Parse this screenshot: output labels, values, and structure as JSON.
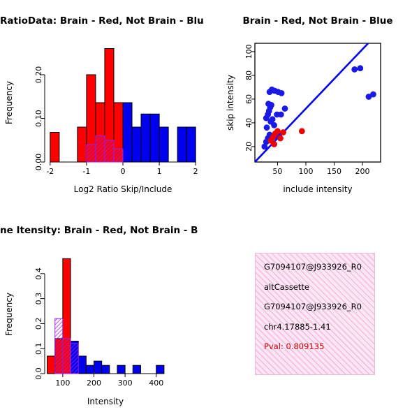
{
  "window": {
    "background": "#ffffff"
  },
  "colors": {
    "hist_red": "#FF0000",
    "hist_blue": "#0000EE",
    "overlap_purple": "#A020F0",
    "scatter_blue": "#1A1AE6",
    "scatter_red": "#EE0000",
    "fit_line_blue": "#0000FF",
    "info_box_pink": "#F5C6E4",
    "pval_red": "#CC0000"
  },
  "chart_data": [
    {
      "type": "bar",
      "title": "RatioData: Brain - Red, Not Brain - Blu",
      "xlabel": "Log2 Ratio Skip/Include",
      "ylabel": "Frequency",
      "frame": false,
      "grid": false,
      "bin_width": 0.25,
      "xlim": [
        -2.15,
        2.15
      ],
      "ylim": [
        0,
        0.272
      ],
      "xticks": [
        -2,
        -1,
        0,
        1,
        2
      ],
      "xtick_labels": [
        "-2",
        "-1",
        "0",
        "1",
        "2"
      ],
      "yticks": [
        0,
        0.1,
        0.2
      ],
      "ytick_labels": [
        "0.00",
        "0.10",
        "0.20"
      ],
      "series": [
        {
          "name": "brain-red",
          "color": "#FF0000",
          "hatch": false,
          "bins": [
            {
              "x": -2.0,
              "h": 0.068
            },
            {
              "x": -1.25,
              "h": 0.08
            },
            {
              "x": -1.0,
              "h": 0.2
            },
            {
              "x": -0.75,
              "h": 0.136
            },
            {
              "x": -0.5,
              "h": 0.26
            },
            {
              "x": -0.25,
              "h": 0.136
            }
          ]
        },
        {
          "name": "not-brain-blue",
          "color": "#0000EE",
          "hatch": false,
          "bins": [
            {
              "x": 0.0,
              "h": 0.136
            },
            {
              "x": 0.25,
              "h": 0.08
            },
            {
              "x": 0.5,
              "h": 0.11
            },
            {
              "x": 0.75,
              "h": 0.11
            },
            {
              "x": 1.0,
              "h": 0.08
            },
            {
              "x": 1.5,
              "h": 0.08
            },
            {
              "x": 1.75,
              "h": 0.08
            }
          ]
        },
        {
          "name": "overlap-purple-hatched",
          "color": "#A020F0",
          "hatch": true,
          "bins": [
            {
              "x": -1.0,
              "h": 0.04
            },
            {
              "x": -0.75,
              "h": 0.06
            },
            {
              "x": -0.5,
              "h": 0.05
            },
            {
              "x": -0.25,
              "h": 0.03
            }
          ]
        }
      ]
    },
    {
      "type": "scatter",
      "title": "Brain - Red, Not Brain - Blue",
      "xlabel": "include intensity",
      "ylabel": "skip intensity",
      "frame": true,
      "grid": false,
      "xlim": [
        10,
        232
      ],
      "ylim": [
        7,
        107
      ],
      "xticks": [
        50,
        100,
        150,
        200
      ],
      "xtick_labels": [
        "50",
        "100",
        "150",
        "200"
      ],
      "yticks": [
        20,
        40,
        60,
        80,
        100
      ],
      "ytick_labels": [
        "20",
        "40",
        "60",
        "80",
        "100"
      ],
      "line": {
        "x1": 10,
        "y1": 7,
        "x2": 210,
        "y2": 107,
        "color": "#0000FF"
      },
      "series": [
        {
          "name": "not-brain-blue",
          "color": "#1A1AE6",
          "points": [
            [
              27,
              20
            ],
            [
              30,
              24
            ],
            [
              33,
              27
            ],
            [
              36,
              30
            ],
            [
              31,
              36
            ],
            [
              30,
              44
            ],
            [
              33,
              47
            ],
            [
              35,
              50
            ],
            [
              37,
              53
            ],
            [
              34,
              56
            ],
            [
              39,
              55
            ],
            [
              38,
              41
            ],
            [
              41,
              43
            ],
            [
              44,
              38
            ],
            [
              49,
              47
            ],
            [
              56,
              47
            ],
            [
              63,
              52
            ],
            [
              36,
              66
            ],
            [
              40,
              68
            ],
            [
              45,
              67
            ],
            [
              51,
              66
            ],
            [
              57,
              65
            ],
            [
              46,
              28
            ],
            [
              53,
              30
            ],
            [
              186,
              85
            ],
            [
              196,
              86
            ],
            [
              211,
              62
            ],
            [
              219,
              64
            ]
          ]
        },
        {
          "name": "brain-red",
          "color": "#EE0000",
          "points": [
            [
              38,
              25
            ],
            [
              42,
              28
            ],
            [
              46,
              31
            ],
            [
              50,
              33
            ],
            [
              55,
              27
            ],
            [
              60,
              32
            ],
            [
              44,
              22
            ],
            [
              93,
              33
            ]
          ]
        }
      ]
    },
    {
      "type": "bar",
      "title": "ne Itensity: Brain - Red, Not Brain - B",
      "xlabel": "Intensity",
      "ylabel": "Frequency",
      "frame": false,
      "grid": false,
      "bin_width": 25,
      "xlim": [
        42,
        432
      ],
      "ylim": [
        0,
        0.475
      ],
      "xticks": [
        100,
        200,
        300,
        400
      ],
      "xtick_labels": [
        "100",
        "200",
        "300",
        "400"
      ],
      "yticks": [
        0,
        0.1,
        0.2,
        0.3,
        0.4
      ],
      "ytick_labels": [
        "0.0",
        "0.1",
        "0.2",
        "0.3",
        "0.4"
      ],
      "series": [
        {
          "name": "brain-red",
          "color": "#FF0000",
          "hatch": false,
          "bins": [
            {
              "x": 50,
              "h": 0.07
            },
            {
              "x": 75,
              "h": 0.14
            },
            {
              "x": 100,
              "h": 0.46
            }
          ]
        },
        {
          "name": "not-brain-blue",
          "color": "#0000EE",
          "hatch": false,
          "bins": [
            {
              "x": 125,
              "h": 0.13
            },
            {
              "x": 150,
              "h": 0.07
            },
            {
              "x": 175,
              "h": 0.033
            },
            {
              "x": 200,
              "h": 0.05
            },
            {
              "x": 225,
              "h": 0.033
            },
            {
              "x": 275,
              "h": 0.033
            },
            {
              "x": 325,
              "h": 0.033
            },
            {
              "x": 400,
              "h": 0.033
            }
          ]
        },
        {
          "name": "overlap-purple-hatched",
          "color": "#A020F0",
          "hatch": true,
          "bins": [
            {
              "x": 75,
              "h": 0.22
            },
            {
              "x": 100,
              "h": 0.14
            },
            {
              "x": 125,
              "h": 0.12
            }
          ]
        }
      ]
    }
  ],
  "panels": {
    "info_box": {
      "lines": [
        "G7094107@J933926_R0",
        "altCassette",
        "G7094107@J933926_R0",
        "chr4.17885-1.41",
        "Pval: 0.809135"
      ]
    }
  }
}
